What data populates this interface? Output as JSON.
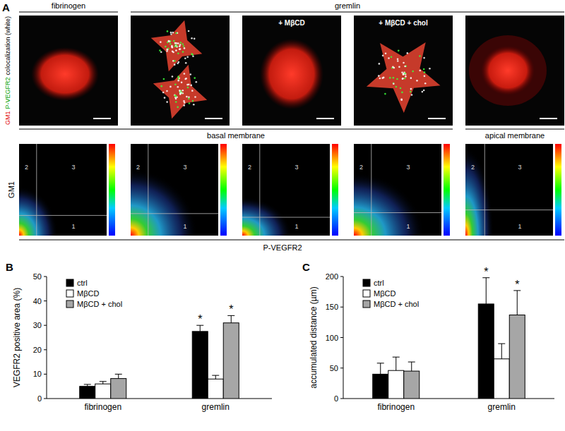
{
  "panel_a": {
    "label": "A",
    "channel_labels": [
      "GM1",
      "P-VEGFR2",
      "colocalization (white)"
    ],
    "group_labels": [
      "fibrinogen",
      "gremlin"
    ],
    "image_labels": [
      null,
      null,
      "+ MβCD",
      "+ MβCD + chol",
      null
    ],
    "membrane_labels": [
      "basal membrane",
      "apical membrane"
    ],
    "scatter_y_label": "GM1",
    "scatter_x_label": "P-VEGFR2",
    "quadrant_labels": [
      "1",
      "2",
      "3"
    ]
  },
  "chart_data": [
    {
      "type": "bar",
      "title": "B",
      "y_label": "VEGFR2 positive area (%)",
      "categories": [
        "fibrinogen",
        "gremlin"
      ],
      "ylim": [
        0,
        50
      ],
      "yticks": [
        0,
        10,
        20,
        30,
        40,
        50
      ],
      "legend": "top-left",
      "series": [
        {
          "name": "ctrl",
          "color": "#000000",
          "values": [
            5,
            27.5
          ],
          "errors": [
            0.8,
            2.5
          ],
          "significance": [
            null,
            "*"
          ]
        },
        {
          "name": "MβCD",
          "color": "#ffffff",
          "values": [
            6,
            8
          ],
          "errors": [
            1,
            1.5
          ],
          "significance": [
            null,
            null
          ]
        },
        {
          "name": "MβCD + chol",
          "color": "#a6a6a6",
          "values": [
            8.2,
            31
          ],
          "errors": [
            1.8,
            3
          ],
          "significance": [
            null,
            "*"
          ]
        }
      ]
    },
    {
      "type": "bar",
      "title": "C",
      "y_label": "accumulated distance (µm)",
      "categories": [
        "fibrinogen",
        "gremlin"
      ],
      "ylim": [
        0,
        200
      ],
      "yticks": [
        0,
        50,
        100,
        150,
        200
      ],
      "legend": "top-left",
      "series": [
        {
          "name": "ctrl",
          "color": "#000000",
          "values": [
            40,
            155
          ],
          "errors": [
            18,
            43
          ],
          "significance": [
            null,
            "*"
          ]
        },
        {
          "name": "MβCD",
          "color": "#ffffff",
          "values": [
            46,
            65
          ],
          "errors": [
            22,
            25
          ],
          "significance": [
            null,
            null
          ]
        },
        {
          "name": "MβCD + chol",
          "color": "#a6a6a6",
          "values": [
            45,
            137
          ],
          "errors": [
            15,
            40
          ],
          "significance": [
            null,
            "*"
          ]
        }
      ]
    }
  ]
}
